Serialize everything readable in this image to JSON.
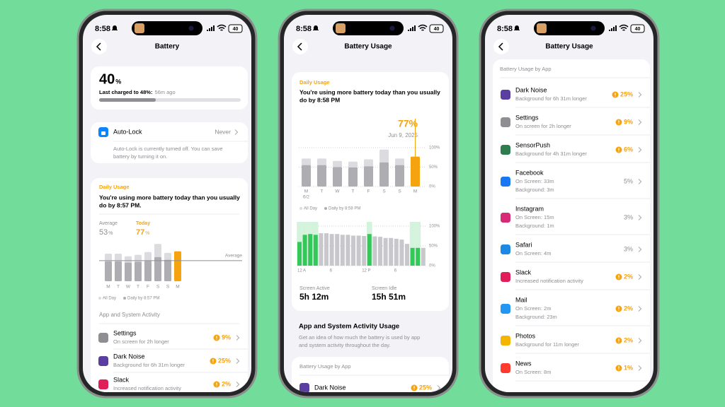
{
  "phones": [
    {
      "status": {
        "time": "8:58",
        "battery": "40"
      },
      "title": "Battery",
      "level": {
        "value": 40,
        "unit": "%",
        "last_charged": "Last charged to 48%:",
        "ago": "56m ago"
      },
      "auto_lock": {
        "name": "Auto-Lock",
        "value": "Never",
        "description": [
          "Auto-Lock is currently turned off. You can save",
          "battery by turning it on."
        ]
      },
      "daily": {
        "label": "Daily Usage",
        "headline": [
          "You're using more battery today than you usually",
          "do by 8:57 PM."
        ],
        "average": {
          "label": "Average",
          "value": 53,
          "unit": "%"
        },
        "today": {
          "label": "Today",
          "value": 77,
          "unit": "%"
        },
        "chart": {
          "type": "bar",
          "categories": [
            "M",
            "T",
            "W",
            "T",
            "F",
            "S",
            "S",
            "M"
          ],
          "average_label": "Average",
          "today_color": "#f5a30f",
          "series": [
            {
              "name": "All Day",
              "color": "#dcdce0",
              "values": [
                71,
                71,
                64,
                68,
                75,
                96,
                73,
                null
              ]
            },
            {
              "name": "Daily by 8:57 PM",
              "color": "#aeaeb2",
              "values": [
                51,
                51,
                48,
                50,
                52,
                62,
                55,
                null
              ]
            }
          ]
        }
      },
      "activity": {
        "title": "App and System Activity",
        "apps": [
          {
            "name": "Settings",
            "detail": [
              "On screen for 2h longer"
            ],
            "percent": "9%",
            "warning": true,
            "color": "#8e8e93"
          },
          {
            "name": "Dark Noise",
            "detail": [
              "Background for 6h 31m longer"
            ],
            "percent": "25%",
            "warning": true,
            "color": "#5b3fa0"
          },
          {
            "name": "Slack",
            "detail": [
              "Increased notification activity"
            ],
            "percent": "2%",
            "warning": true,
            "color": "#e01e5a"
          }
        ]
      }
    },
    {
      "status": {
        "time": "8:58",
        "battery": "40"
      },
      "title": "Battery Usage",
      "daily": {
        "label": "Daily Usage",
        "headline": [
          "You're using more battery today than you usually",
          "do by 8:58 PM"
        ],
        "today_value": 77,
        "today_label": "77%",
        "date": "Jun 9, 2025",
        "chart": {
          "type": "bar",
          "categories": [
            "M",
            "T",
            "W",
            "T",
            "F",
            "S",
            "S",
            "M"
          ],
          "first_date": "6/2",
          "ylim": [
            0,
            100
          ],
          "yticks": [
            {
              "value": 100,
              "label": "100%"
            },
            {
              "value": 50,
              "label": "50%"
            },
            {
              "value": 0,
              "label": "0%"
            }
          ],
          "today_color": "#f5a30f",
          "series": [
            {
              "name": "All Day",
              "color": "#dcdce0",
              "values": [
                72,
                72,
                66,
                64,
                70,
                95,
                72,
                null
              ]
            },
            {
              "name": "Daily by 8:58 PM",
              "color": "#aeaeb2",
              "values": [
                55,
                55,
                50,
                49,
                52,
                62,
                55,
                null
              ]
            }
          ]
        },
        "hourly": {
          "type": "bar",
          "categories": [
            "12 A",
            null,
            null,
            null,
            null,
            null,
            "6",
            null,
            null,
            null,
            null,
            null,
            "12 P",
            null,
            null,
            null,
            null,
            null,
            "6",
            null,
            null,
            null,
            null,
            null
          ],
          "ylim": [
            0,
            100
          ],
          "yticks": [
            {
              "value": 100,
              "label": "100%"
            },
            {
              "value": 50,
              "label": "50%"
            },
            {
              "value": 0,
              "label": "0%"
            }
          ],
          "active": {
            "color": "#34c759",
            "values": [
              60,
              78,
              80,
              78,
              0,
              0,
              0,
              0,
              0,
              0,
              0,
              0,
              0,
              80,
              0,
              0,
              0,
              0,
              0,
              0,
              0,
              45,
              45,
              0
            ]
          },
          "idle": {
            "color": "#c7c7cc",
            "values": [
              0,
              0,
              0,
              0,
              82,
              82,
              80,
              80,
              78,
              78,
              76,
              76,
              75,
              0,
              74,
              73,
              70,
              70,
              68,
              66,
              55,
              0,
              0,
              45
            ]
          }
        },
        "screen_active": {
          "label": "Screen Active",
          "value": "5h 12m"
        },
        "screen_idle": {
          "label": "Screen Idle",
          "value": "15h 51m"
        }
      },
      "activity": {
        "title": "App and System Activity Usage",
        "description": [
          "Get an idea of how much the battery is used by app",
          "and system activity throughout the day."
        ]
      },
      "by_app": {
        "title": "Battery Usage by App",
        "apps": [
          {
            "name": "Dark Noise",
            "detail": [],
            "percent": "25%",
            "warning": true,
            "color": "#5b3fa0"
          }
        ]
      }
    },
    {
      "status": {
        "time": "8:58",
        "battery": "40"
      },
      "title": "Battery Usage",
      "by_app": {
        "title": "Battery Usage by App",
        "apps": [
          {
            "name": "Dark Noise",
            "detail": [
              "Background for 6h 31m longer"
            ],
            "percent": "25%",
            "warning": true,
            "color": "#5b3fa0"
          },
          {
            "name": "Settings",
            "detail": [
              "On screen for 2h longer"
            ],
            "percent": "9%",
            "warning": true,
            "color": "#8e8e93"
          },
          {
            "name": "SensorPush",
            "detail": [
              "Background for 4h 31m longer"
            ],
            "percent": "6%",
            "warning": true,
            "color": "#2e7d4f"
          },
          {
            "name": "Facebook",
            "detail": [
              "On Screen: 33m",
              "Background: 3m"
            ],
            "percent": "5%",
            "warning": false,
            "color": "#1877f2"
          },
          {
            "name": "Instagram",
            "detail": [
              "On Screen: 15m",
              "Background: 1m"
            ],
            "percent": "3%",
            "warning": false,
            "color": "#d62976"
          },
          {
            "name": "Safari",
            "detail": [
              "On Screen: 4m"
            ],
            "percent": "3%",
            "warning": false,
            "color": "#1e88e5"
          },
          {
            "name": "Slack",
            "detail": [
              "Increased notification activity"
            ],
            "percent": "2%",
            "warning": true,
            "color": "#e01e5a"
          },
          {
            "name": "Mail",
            "detail": [
              "On Screen: 2m",
              "Background: 23m"
            ],
            "percent": "2%",
            "warning": true,
            "color": "#2196f3"
          },
          {
            "name": "Photos",
            "detail": [
              "Background for 11m longer"
            ],
            "percent": "2%",
            "warning": true,
            "color": "#f4b400"
          },
          {
            "name": "News",
            "detail": [
              "On Screen: 8m"
            ],
            "percent": "1%",
            "warning": true,
            "color": "#ff3b30"
          }
        ]
      }
    }
  ]
}
